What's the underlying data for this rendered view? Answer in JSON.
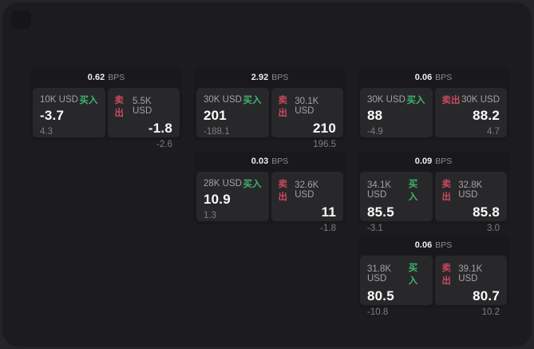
{
  "colors": {
    "buy_green": "#3eb56e",
    "sell_red": "#c9495e",
    "panel_bg": "#1c1c1e",
    "card_bg": "#19191b",
    "tile_bg": "#28282a"
  },
  "cards": [
    {
      "bps": "0.62",
      "bps_unit": "BPS",
      "buy": {
        "size": "10K USD",
        "label": "买入",
        "price": "-3.7",
        "delta": "4.3"
      },
      "sell": {
        "label": "卖出",
        "size": "5.5K USD",
        "price": "-1.8",
        "delta": "-2.6"
      }
    },
    {
      "bps": "2.92",
      "bps_unit": "BPS",
      "buy": {
        "size": "30K USD",
        "label": "买入",
        "price": "201",
        "delta": "-188.1"
      },
      "sell": {
        "label": "卖出",
        "size": "30.1K USD",
        "price": "210",
        "delta": "196.5"
      }
    },
    {
      "bps": "0.06",
      "bps_unit": "BPS",
      "buy": {
        "size": "30K USD",
        "label": "买入",
        "price": "88",
        "delta": "-4.9"
      },
      "sell": {
        "label": "卖出",
        "size": "30K USD",
        "price": "88.2",
        "delta": "4.7"
      }
    },
    {
      "bps": "0.03",
      "bps_unit": "BPS",
      "buy": {
        "size": "28K USD",
        "label": "买入",
        "price": "10.9",
        "delta": "1.3"
      },
      "sell": {
        "label": "卖出",
        "size": "32.6K USD",
        "price": "11",
        "delta": "-1.8"
      }
    },
    {
      "bps": "0.09",
      "bps_unit": "BPS",
      "buy": {
        "size": "34.1K USD",
        "label": "买入",
        "price": "85.5",
        "delta": "-3.1"
      },
      "sell": {
        "label": "卖出",
        "size": "32.8K USD",
        "price": "85.8",
        "delta": "3.0"
      }
    },
    {
      "bps": "0.06",
      "bps_unit": "BPS",
      "buy": {
        "size": "31.8K USD",
        "label": "买入",
        "price": "80.5",
        "delta": "-10.8"
      },
      "sell": {
        "label": "卖出",
        "size": "39.1K USD",
        "price": "80.7",
        "delta": "10.2"
      }
    }
  ]
}
